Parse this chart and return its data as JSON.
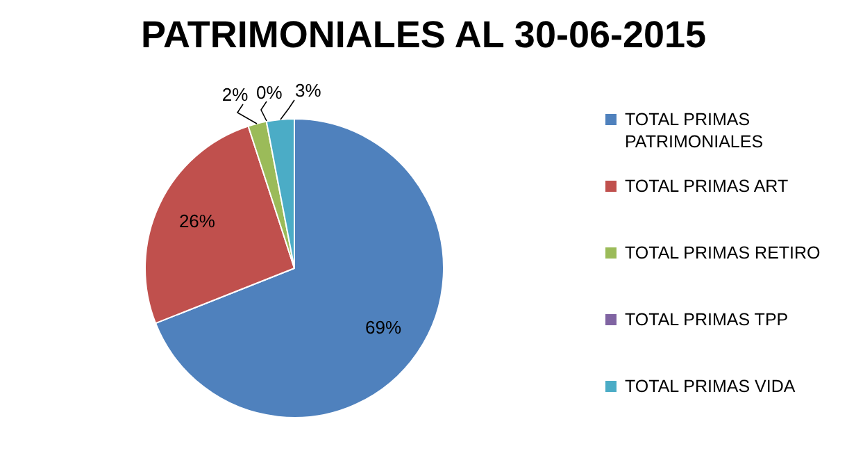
{
  "chart_data": {
    "type": "pie",
    "title": "PATRIMONIALES AL 30-06-2015",
    "categories": [
      "TOTAL PRIMAS PATRIMONIALES",
      "TOTAL PRIMAS ART",
      "TOTAL PRIMAS RETIRO",
      "TOTAL PRIMAS TPP",
      "TOTAL PRIMAS VIDA"
    ],
    "values": [
      69,
      26,
      2,
      0,
      3
    ],
    "colors": [
      "#4f81bd",
      "#c0504d",
      "#9bbb59",
      "#8064a2",
      "#4bacc6"
    ],
    "value_labels": [
      "69%",
      "26%",
      "2%",
      "0%",
      "3%"
    ],
    "legend": "right"
  }
}
